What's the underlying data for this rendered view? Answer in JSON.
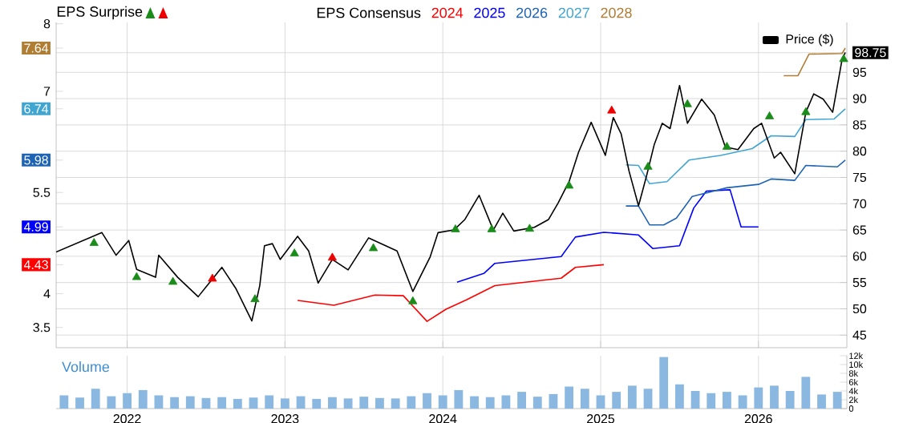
{
  "chart_data": [
    {
      "type": "line",
      "annotations": [
        "EPS Surprise",
        "EPS Consensus"
      ],
      "xlim": [
        2021.55,
        2026.56
      ],
      "xticks": [
        2022,
        2023,
        2024,
        2025,
        2026
      ],
      "ylim": [
        3.2,
        8.02
      ],
      "yticks": [
        3.5,
        4,
        4.43,
        4.99,
        5.5,
        5.98,
        6.74,
        7,
        7.64,
        8
      ],
      "y2lim": [
        42.6,
        104.5
      ],
      "y2ticks": [
        45,
        50,
        55,
        60,
        65,
        70,
        75,
        80,
        85,
        90,
        95,
        98.75
      ],
      "grid": true,
      "tick_labels": "y",
      "legend": "top right",
      "series": [
        {
          "name": "2024",
          "color": "#ff0000",
          "x": [
            2023.08,
            2023.31,
            2023.57,
            2023.75,
            2023.9,
            2024.02,
            2024.15,
            2024.33,
            2024.75,
            2024.84,
            2025.02
          ],
          "values": [
            3.9,
            3.83,
            3.98,
            3.97,
            3.59,
            3.77,
            3.91,
            4.12,
            4.23,
            4.39,
            4.43
          ]
        },
        {
          "name": "2025",
          "color": "#0000ff",
          "x": [
            2024.09,
            2024.26,
            2024.33,
            2024.75,
            2024.84,
            2025.02,
            2025.24,
            2025.33,
            2025.5,
            2025.59,
            2025.67,
            2025.82,
            2025.89,
            2026.0
          ],
          "values": [
            4.17,
            4.3,
            4.45,
            4.55,
            4.84,
            4.91,
            4.87,
            4.67,
            4.71,
            5.27,
            5.52,
            5.54,
            4.99,
            4.99
          ]
        },
        {
          "name": "2026",
          "color": "#1f64b4",
          "x": [
            2025.16,
            2025.24,
            2025.31,
            2025.4,
            2025.48,
            2025.58,
            2025.8,
            2026.0,
            2026.08,
            2026.23,
            2026.3,
            2026.5,
            2026.55
          ],
          "values": [
            5.3,
            5.3,
            5.02,
            5.02,
            5.12,
            5.44,
            5.57,
            5.62,
            5.7,
            5.68,
            5.9,
            5.88,
            5.98
          ]
        },
        {
          "name": "2027",
          "color": "#41a5d2",
          "x": [
            2025.16,
            2025.24,
            2025.31,
            2025.42,
            2025.56,
            2025.76,
            2025.96,
            2026.08,
            2026.23,
            2026.3,
            2026.48,
            2026.55
          ],
          "values": [
            5.91,
            5.9,
            5.63,
            5.66,
            5.98,
            6.05,
            6.15,
            6.34,
            6.33,
            6.58,
            6.59,
            6.74
          ]
        },
        {
          "name": "2028",
          "color": "#b07d35",
          "x": [
            2026.16,
            2026.25,
            2026.32,
            2026.53,
            2026.55
          ],
          "values": [
            7.23,
            7.23,
            7.55,
            7.56,
            7.64
          ]
        },
        {
          "name": "Price ($)",
          "color": "#000000",
          "axis": "y2",
          "x": [
            2021.55,
            2021.84,
            2021.93,
            2022.01,
            2022.06,
            2022.18,
            2022.2,
            2022.32,
            2022.45,
            2022.6,
            2022.69,
            2022.79,
            2022.84,
            2022.87,
            2022.92,
            2022.97,
            2023.08,
            2023.15,
            2023.21,
            2023.3,
            2023.4,
            2023.53,
            2023.71,
            2023.81,
            2023.92,
            2023.97,
            2024.07,
            2024.14,
            2024.23,
            2024.32,
            2024.38,
            2024.45,
            2024.58,
            2024.67,
            2024.73,
            2024.8,
            2024.86,
            2024.94,
            2025.03,
            2025.08,
            2025.13,
            2025.18,
            2025.24,
            2025.29,
            2025.34,
            2025.39,
            2025.44,
            2025.5,
            2025.55,
            2025.64,
            2025.72,
            2025.79,
            2025.87,
            2025.97,
            2026.02,
            2026.1,
            2026.14,
            2026.23,
            2026.3,
            2026.35,
            2026.41,
            2026.47,
            2026.53,
            2026.55
          ],
          "values": [
            60.8,
            64.5,
            60.2,
            63,
            57.5,
            56,
            60.2,
            56,
            52.3,
            57.9,
            53.8,
            47.7,
            54.4,
            62,
            62.4,
            59.4,
            63.8,
            61,
            54.9,
            59.4,
            57.4,
            63.5,
            61,
            53.3,
            59.9,
            64.5,
            65,
            67,
            71.6,
            65,
            68.2,
            64.8,
            65.5,
            67,
            70.1,
            74.2,
            79.8,
            85.5,
            79.2,
            86.4,
            83.3,
            76.2,
            69.6,
            75.2,
            81.3,
            85.3,
            84.3,
            92.5,
            85.3,
            89.9,
            86.9,
            80.8,
            80.3,
            84.3,
            85.3,
            78.7,
            79.8,
            75.7,
            87.4,
            90.9,
            89.9,
            87.4,
            97.5,
            98.75
          ]
        },
        {
          "type": "scatter",
          "color": "#1a8c1a",
          "axis": "y2",
          "marker": "triangle",
          "x": [
            2021.79,
            2022.06,
            2022.29,
            2022.81,
            2023.06,
            2023.56,
            2023.81,
            2024.08,
            2024.31,
            2024.55,
            2024.8,
            2025.3,
            2025.55,
            2025.8,
            2026.07,
            2026.3,
            2026.54
          ],
          "values": [
            62.5,
            56,
            55.1,
            51.8,
            60.5,
            61.5,
            51.4,
            65.1,
            65.1,
            65.2,
            73.4,
            77,
            88.9,
            80.8,
            86.6,
            87.4,
            97.5
          ]
        },
        {
          "type": "scatter",
          "color": "#ee0000",
          "axis": "y2",
          "marker": "triangle",
          "x": [
            2022.54,
            2023.3,
            2025.07
          ],
          "values": [
            55.7,
            59.7,
            87.7
          ]
        }
      ]
    },
    {
      "type": "bar",
      "title": "Volume",
      "color": "#8ab8e0",
      "xlim": [
        2021.55,
        2026.56
      ],
      "xticks": [
        2022,
        2023,
        2024,
        2025,
        2026
      ],
      "ylim": [
        0,
        12000
      ],
      "yticks": [
        0,
        {
          "value": 2000,
          "label": "2k"
        },
        {
          "value": 4000,
          "label": "4k"
        },
        {
          "value": 6000,
          "label": "6k"
        },
        {
          "value": 8000,
          "label": "8k"
        },
        {
          "value": 10000,
          "label": "10k"
        },
        {
          "value": 12000,
          "label": "12k"
        }
      ],
      "grid": "x",
      "x": [
        2021.6,
        2021.7,
        2021.8,
        2021.9,
        2022.0,
        2022.1,
        2022.2,
        2022.3,
        2022.4,
        2022.5,
        2022.6,
        2022.7,
        2022.8,
        2022.9,
        2023.0,
        2023.1,
        2023.2,
        2023.3,
        2023.4,
        2023.5,
        2023.6,
        2023.7,
        2023.8,
        2023.9,
        2024.0,
        2024.1,
        2024.2,
        2024.3,
        2024.4,
        2024.5,
        2024.6,
        2024.7,
        2024.8,
        2024.9,
        2025.0,
        2025.1,
        2025.2,
        2025.3,
        2025.4,
        2025.5,
        2025.6,
        2025.7,
        2025.8,
        2025.9,
        2026.0,
        2026.1,
        2026.2,
        2026.3,
        2026.4,
        2026.5
      ],
      "values": [
        3000,
        2500,
        4500,
        2800,
        3500,
        4200,
        3000,
        2600,
        2800,
        2400,
        2600,
        2200,
        2500,
        3000,
        2300,
        2800,
        2200,
        2600,
        2300,
        2700,
        2400,
        2300,
        2800,
        3500,
        3000,
        4200,
        2800,
        2600,
        3000,
        3800,
        2700,
        3300,
        5000,
        4500,
        3000,
        3800,
        5200,
        4500,
        11700,
        5500,
        4000,
        3500,
        3800,
        3000,
        4800,
        5200,
        4000,
        7200,
        3200,
        3800
      ]
    }
  ]
}
